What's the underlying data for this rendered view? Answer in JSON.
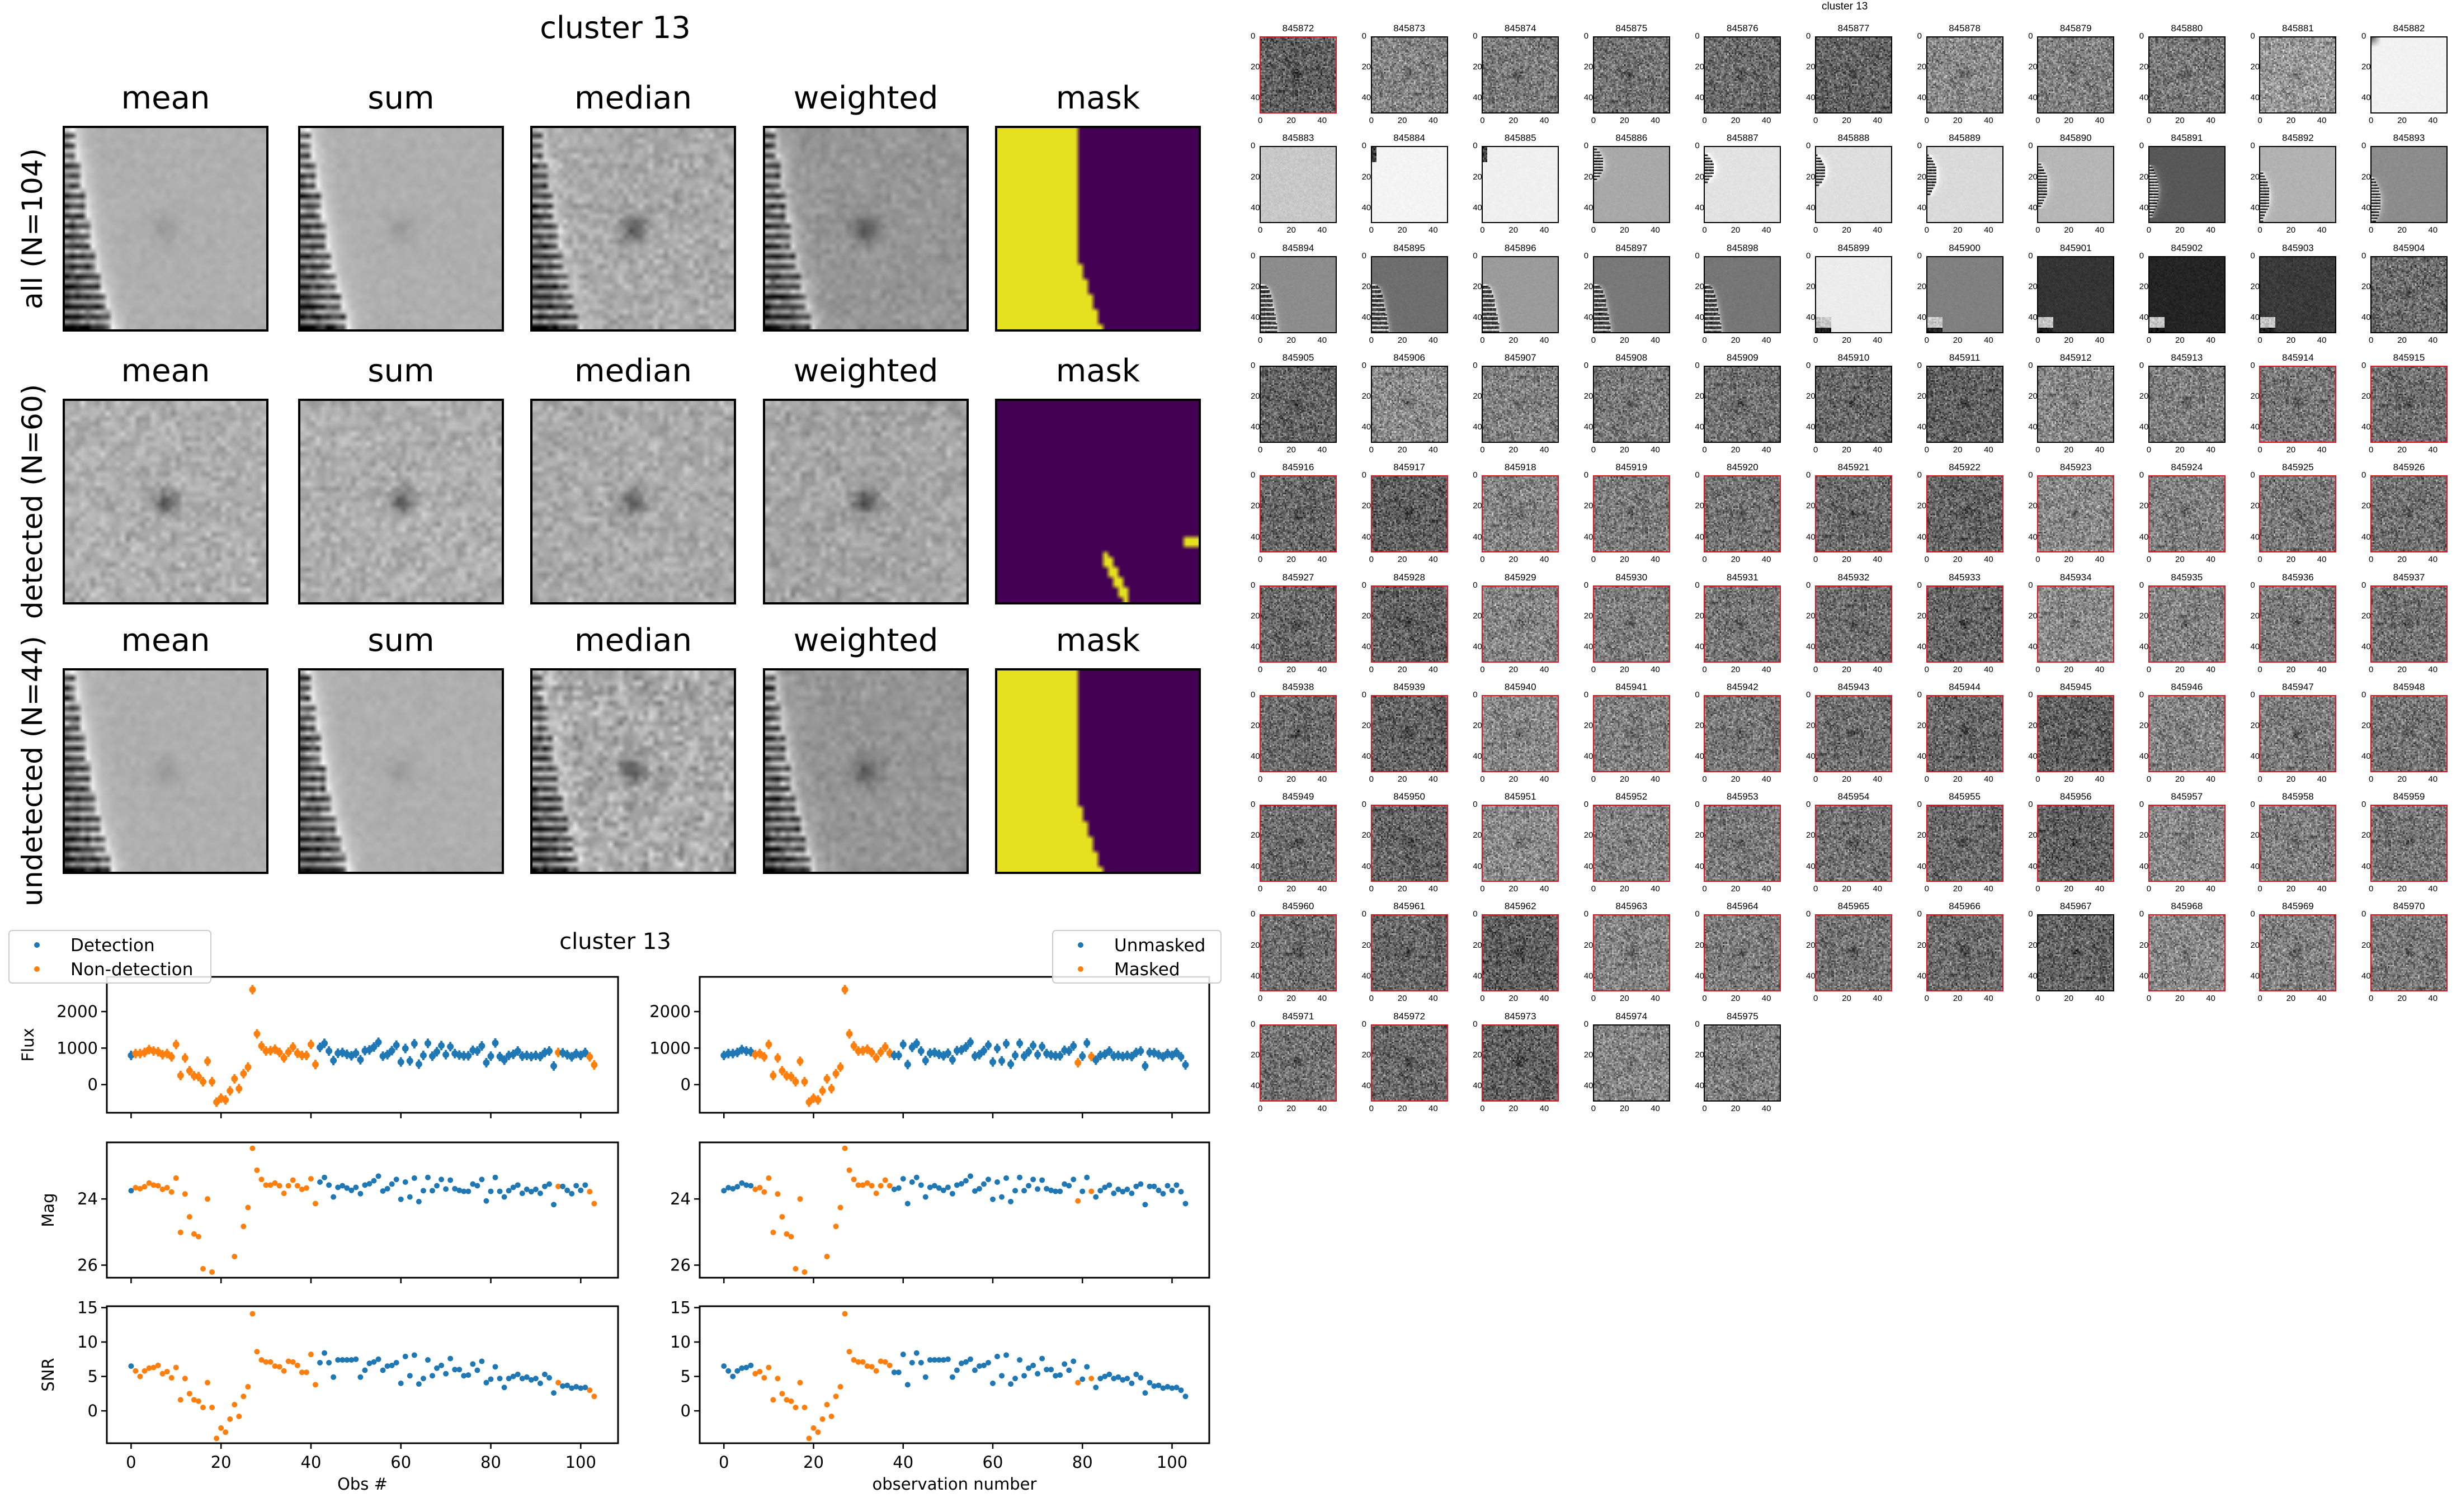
{
  "summary": {
    "title": "cluster 13",
    "columns": [
      "mean",
      "sum",
      "median",
      "weighted",
      "mask"
    ],
    "rows": [
      {
        "label": "all (N=104)"
      },
      {
        "label": "detected (N=60)"
      },
      {
        "label": "undetected (N=44)"
      }
    ]
  },
  "lightcurves": {
    "title": "cluster 13"
  },
  "chart_data": {
    "type": "scatter",
    "title": "cluster 13",
    "x": "observation index 0..103",
    "xlim": [
      -5.4,
      108.3
    ],
    "xticks": [
      0,
      20,
      40,
      60,
      80,
      100
    ],
    "colors": {
      "blue": "#1f77b4",
      "orange": "#ff7f0e"
    },
    "panels": [
      {
        "key": "flux",
        "ylabel": "Flux",
        "ylim": [
          -770,
          2950
        ],
        "yticks": [
          0,
          1000,
          2000
        ],
        "inverted": false,
        "errorbars": true
      },
      {
        "key": "mag",
        "ylabel": "Mag",
        "ylim": [
          22.29,
          26.38
        ],
        "yticks": [
          24,
          26
        ],
        "inverted": true,
        "errorbars": false
      },
      {
        "key": "snr",
        "ylabel": "SNR",
        "ylim": [
          -4.7,
          15.2
        ],
        "yticks": [
          0,
          5,
          10,
          15
        ],
        "inverted": false,
        "errorbars": false
      }
    ],
    "observations": {
      "flux": [
        800,
        850,
        850,
        880,
        960,
        920,
        900,
        820,
        850,
        760,
        1100,
        250,
        730,
        380,
        240,
        220,
        80,
        640,
        80,
        -480,
        -370,
        -420,
        -170,
        160,
        -110,
        300,
        480,
        2600,
        1390,
        1060,
        920,
        930,
        970,
        880,
        730,
        890,
        1030,
        860,
        800,
        800,
        1100,
        550,
        1020,
        1130,
        920,
        660,
        860,
        880,
        830,
        790,
        860,
        680,
        930,
        950,
        1030,
        1160,
        780,
        820,
        930,
        1080,
        620,
        990,
        650,
        1120,
        560,
        800,
        1130,
        780,
        900,
        1070,
        820,
        1040,
        850,
        810,
        790,
        790,
        940,
        920,
        1060,
        600,
        780,
        1140,
        770,
        670,
        800,
        830,
        920,
        780,
        800,
        770,
        800,
        770,
        880,
        920,
        510,
        880,
        870,
        820,
        760,
        850,
        800,
        880,
        760,
        540
      ],
      "flux_err_typical": 130,
      "mag": [
        23.75,
        23.66,
        23.69,
        23.63,
        23.52,
        23.58,
        23.6,
        23.71,
        23.66,
        23.79,
        23.37,
        25.01,
        23.85,
        24.54,
        25.06,
        25.14,
        26.11,
        24.0,
        26.21,
        null,
        null,
        null,
        null,
        25.74,
        null,
        24.83,
        24.26,
        22.47,
        23.13,
        23.41,
        23.58,
        23.58,
        23.52,
        23.6,
        23.83,
        23.6,
        23.43,
        23.6,
        23.71,
        23.67,
        23.39,
        24.14,
        23.49,
        23.35,
        23.58,
        23.94,
        23.65,
        23.6,
        23.67,
        23.74,
        23.65,
        23.84,
        23.58,
        23.54,
        23.45,
        23.31,
        23.76,
        23.69,
        23.55,
        23.41,
        24.01,
        23.49,
        23.94,
        23.37,
        24.08,
        23.75,
        23.35,
        23.75,
        23.6,
        23.41,
        23.7,
        23.43,
        23.69,
        23.74,
        23.77,
        23.77,
        23.55,
        23.6,
        23.41,
        24.06,
        23.77,
        23.35,
        23.77,
        23.94,
        23.75,
        23.65,
        23.58,
        23.83,
        23.71,
        23.78,
        23.71,
        23.83,
        23.62,
        23.55,
        24.17,
        23.62,
        23.62,
        23.74,
        23.84,
        23.6,
        23.74,
        23.58,
        23.78,
        24.14
      ],
      "snr": [
        6.5,
        5.8,
        5.0,
        5.8,
        6.2,
        6.3,
        6.6,
        5.4,
        5.7,
        4.8,
        6.3,
        1.6,
        4.7,
        2.5,
        1.6,
        1.4,
        0.5,
        4.1,
        0.5,
        -4.0,
        -2.5,
        -3.1,
        -1.2,
        0.9,
        -0.8,
        2.1,
        3.5,
        14.1,
        8.6,
        7.4,
        7.1,
        7.1,
        6.5,
        6.4,
        5.8,
        7.2,
        7.1,
        6.6,
        5.6,
        5.6,
        8.2,
        3.8,
        7.0,
        8.4,
        7.0,
        4.9,
        7.4,
        7.4,
        7.4,
        7.4,
        7.5,
        4.9,
        5.9,
        6.9,
        7.1,
        7.5,
        5.9,
        6.5,
        6.6,
        7.0,
        4.0,
        7.9,
        5.1,
        8.1,
        3.9,
        4.7,
        7.4,
        5.1,
        6.2,
        6.6,
        5.4,
        7.6,
        6.0,
        6.0,
        5.1,
        5.2,
        6.8,
        5.9,
        7.2,
        4.1,
        4.6,
        6.4,
        4.7,
        3.4,
        4.7,
        5.0,
        5.3,
        4.7,
        4.9,
        4.5,
        4.7,
        4.0,
        5.3,
        4.8,
        2.6,
        4.1,
        3.6,
        3.7,
        3.3,
        3.5,
        3.3,
        3.4,
        3.0,
        2.1
      ]
    },
    "figures": [
      {
        "name": "detection",
        "xlabel": "Obs #",
        "show_ylabels": true,
        "legend": {
          "placement": "upper-left",
          "blue_label": "Detection",
          "orange_label": "Non-detection"
        },
        "blue_ranges": [
          [
            0,
            0
          ],
          [
            42,
            94
          ],
          [
            96,
            101
          ]
        ]
      },
      {
        "name": "mask",
        "xlabel": "observation number",
        "show_ylabels": false,
        "legend": {
          "placement": "upper-right",
          "blue_label": "Unmasked",
          "orange_label": "Masked"
        },
        "blue_ranges": [
          [
            0,
            6
          ],
          [
            38,
            78
          ],
          [
            80,
            81
          ],
          [
            83,
            103
          ]
        ]
      }
    ]
  },
  "cutouts": {
    "overlay_label": "cluster 13",
    "tick_labels": [
      "0",
      "20",
      "40"
    ],
    "items": [
      {
        "id": "845872",
        "flagged": true
      },
      {
        "id": "845873",
        "flagged": false
      },
      {
        "id": "845874",
        "flagged": false
      },
      {
        "id": "845875",
        "flagged": false
      },
      {
        "id": "845876",
        "flagged": false
      },
      {
        "id": "845877",
        "flagged": false
      },
      {
        "id": "845878",
        "flagged": false
      },
      {
        "id": "845879",
        "flagged": false
      },
      {
        "id": "845880",
        "flagged": false
      },
      {
        "id": "845881",
        "flagged": false
      },
      {
        "id": "845882",
        "flagged": false
      },
      {
        "id": "845883",
        "flagged": false
      },
      {
        "id": "845884",
        "flagged": false
      },
      {
        "id": "845885",
        "flagged": false
      },
      {
        "id": "845886",
        "flagged": false
      },
      {
        "id": "845887",
        "flagged": false
      },
      {
        "id": "845888",
        "flagged": false
      },
      {
        "id": "845889",
        "flagged": false
      },
      {
        "id": "845890",
        "flagged": false
      },
      {
        "id": "845891",
        "flagged": false
      },
      {
        "id": "845892",
        "flagged": false
      },
      {
        "id": "845893",
        "flagged": false
      },
      {
        "id": "845894",
        "flagged": false
      },
      {
        "id": "845895",
        "flagged": false
      },
      {
        "id": "845896",
        "flagged": false
      },
      {
        "id": "845897",
        "flagged": false
      },
      {
        "id": "845898",
        "flagged": false
      },
      {
        "id": "845899",
        "flagged": false
      },
      {
        "id": "845900",
        "flagged": false
      },
      {
        "id": "845901",
        "flagged": false
      },
      {
        "id": "845902",
        "flagged": false
      },
      {
        "id": "845903",
        "flagged": false
      },
      {
        "id": "845904",
        "flagged": false
      },
      {
        "id": "845905",
        "flagged": false
      },
      {
        "id": "845906",
        "flagged": false
      },
      {
        "id": "845907",
        "flagged": false
      },
      {
        "id": "845908",
        "flagged": false
      },
      {
        "id": "845909",
        "flagged": false
      },
      {
        "id": "845910",
        "flagged": false
      },
      {
        "id": "845911",
        "flagged": false
      },
      {
        "id": "845912",
        "flagged": false
      },
      {
        "id": "845913",
        "flagged": false
      },
      {
        "id": "845914",
        "flagged": true
      },
      {
        "id": "845915",
        "flagged": true
      },
      {
        "id": "845916",
        "flagged": true
      },
      {
        "id": "845917",
        "flagged": true
      },
      {
        "id": "845918",
        "flagged": true
      },
      {
        "id": "845919",
        "flagged": true
      },
      {
        "id": "845920",
        "flagged": true
      },
      {
        "id": "845921",
        "flagged": true
      },
      {
        "id": "845922",
        "flagged": true
      },
      {
        "id": "845923",
        "flagged": true
      },
      {
        "id": "845924",
        "flagged": true
      },
      {
        "id": "845925",
        "flagged": true
      },
      {
        "id": "845926",
        "flagged": true
      },
      {
        "id": "845927",
        "flagged": true
      },
      {
        "id": "845928",
        "flagged": true
      },
      {
        "id": "845929",
        "flagged": true
      },
      {
        "id": "845930",
        "flagged": true
      },
      {
        "id": "845931",
        "flagged": true
      },
      {
        "id": "845932",
        "flagged": true
      },
      {
        "id": "845933",
        "flagged": true
      },
      {
        "id": "845934",
        "flagged": true
      },
      {
        "id": "845935",
        "flagged": true
      },
      {
        "id": "845936",
        "flagged": true
      },
      {
        "id": "845937",
        "flagged": true
      },
      {
        "id": "845938",
        "flagged": true
      },
      {
        "id": "845939",
        "flagged": true
      },
      {
        "id": "845940",
        "flagged": true
      },
      {
        "id": "845941",
        "flagged": true
      },
      {
        "id": "845942",
        "flagged": true
      },
      {
        "id": "845943",
        "flagged": true
      },
      {
        "id": "845944",
        "flagged": true
      },
      {
        "id": "845945",
        "flagged": true
      },
      {
        "id": "845946",
        "flagged": true
      },
      {
        "id": "845947",
        "flagged": true
      },
      {
        "id": "845948",
        "flagged": true
      },
      {
        "id": "845949",
        "flagged": true
      },
      {
        "id": "845950",
        "flagged": true
      },
      {
        "id": "845951",
        "flagged": true
      },
      {
        "id": "845952",
        "flagged": true
      },
      {
        "id": "845953",
        "flagged": true
      },
      {
        "id": "845954",
        "flagged": true
      },
      {
        "id": "845955",
        "flagged": true
      },
      {
        "id": "845956",
        "flagged": true
      },
      {
        "id": "845957",
        "flagged": true
      },
      {
        "id": "845958",
        "flagged": true
      },
      {
        "id": "845959",
        "flagged": true
      },
      {
        "id": "845960",
        "flagged": true
      },
      {
        "id": "845961",
        "flagged": true
      },
      {
        "id": "845962",
        "flagged": true
      },
      {
        "id": "845963",
        "flagged": true
      },
      {
        "id": "845964",
        "flagged": true
      },
      {
        "id": "845965",
        "flagged": true
      },
      {
        "id": "845966",
        "flagged": true
      },
      {
        "id": "845967",
        "flagged": false
      },
      {
        "id": "845968",
        "flagged": true
      },
      {
        "id": "845969",
        "flagged": true
      },
      {
        "id": "845970",
        "flagged": true
      },
      {
        "id": "845971",
        "flagged": true
      },
      {
        "id": "845972",
        "flagged": true
      },
      {
        "id": "845973",
        "flagged": true
      },
      {
        "id": "845974",
        "flagged": false
      },
      {
        "id": "845975",
        "flagged": false
      }
    ]
  }
}
